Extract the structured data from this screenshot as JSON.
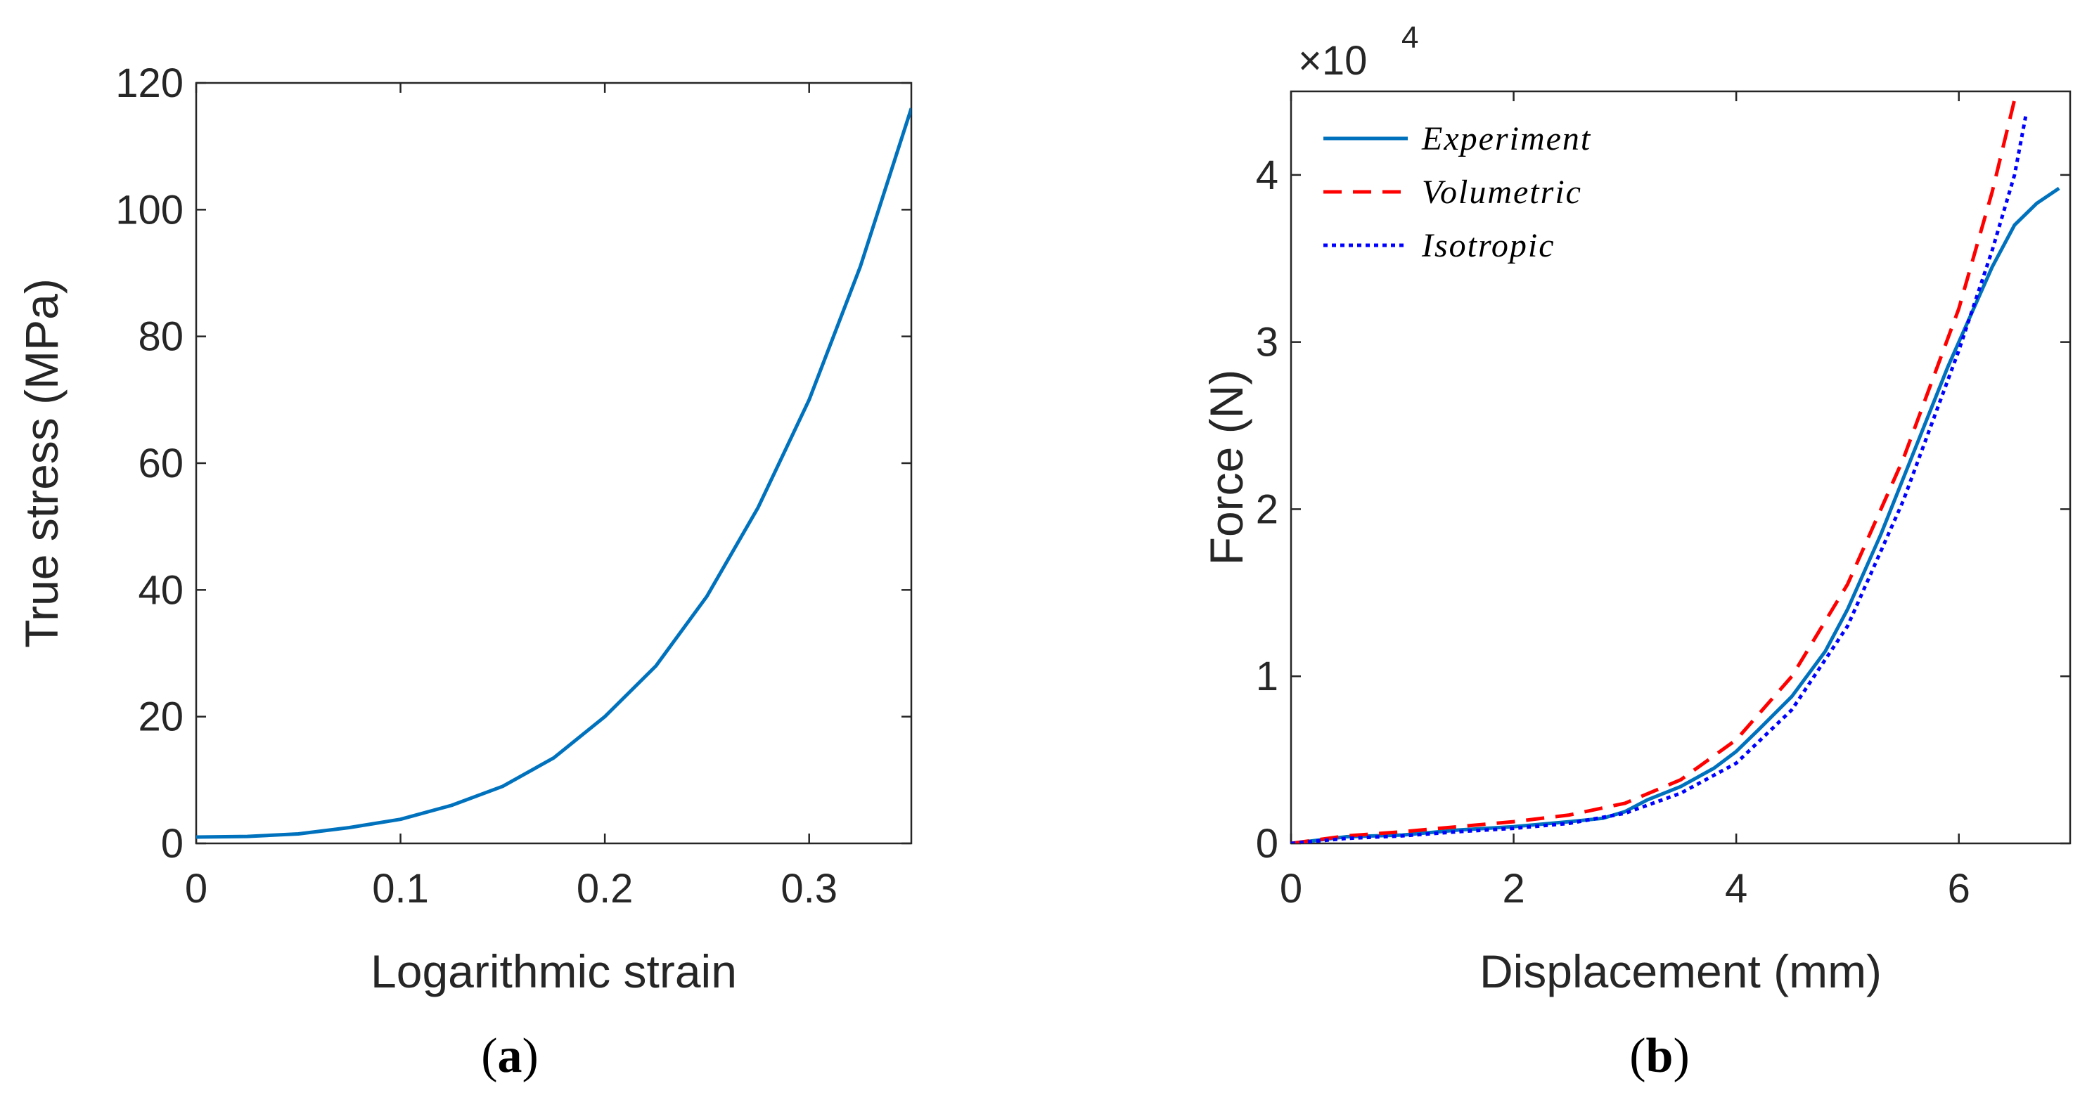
{
  "chart_data": [
    {
      "type": "line",
      "caption": "a",
      "xlabel": "Logarithmic strain",
      "ylabel": "True stress (MPa)",
      "xlim": [
        0,
        0.35
      ],
      "ylim": [
        0,
        120
      ],
      "xticks": [
        0,
        0.1,
        0.2,
        0.3
      ],
      "xtick_labels": [
        "0",
        "0.1",
        "0.2",
        "0.3"
      ],
      "yticks": [
        0,
        20,
        40,
        60,
        80,
        100,
        120
      ],
      "ytick_labels": [
        "0",
        "20",
        "40",
        "60",
        "80",
        "100",
        "120"
      ],
      "grid": false,
      "colors": {
        "series": "#0072BD",
        "axis": "#262626"
      },
      "series": [
        {
          "style": "solid",
          "x": [
            0,
            0.025,
            0.05,
            0.075,
            0.1,
            0.125,
            0.15,
            0.175,
            0.2,
            0.225,
            0.25,
            0.275,
            0.3,
            0.325,
            0.35
          ],
          "y": [
            1.0,
            1.1,
            1.5,
            2.5,
            3.8,
            6.0,
            9.0,
            13.5,
            20.0,
            28.0,
            39.0,
            53.0,
            70.0,
            91.0,
            116.0
          ]
        }
      ]
    },
    {
      "type": "line",
      "caption": "b",
      "xlabel": "Displacement (mm)",
      "ylabel": "Force (N)",
      "exponent_label": "×10",
      "exponent": "4",
      "xlim": [
        0,
        7
      ],
      "ylim": [
        0,
        45000
      ],
      "xticks": [
        0,
        2,
        4,
        6
      ],
      "xtick_labels": [
        "0",
        "2",
        "4",
        "6"
      ],
      "yticks": [
        0,
        10000,
        20000,
        30000,
        40000
      ],
      "ytick_labels": [
        "0",
        "1",
        "2",
        "3",
        "4"
      ],
      "grid": false,
      "legend_position": "top-left",
      "colors": {
        "Experiment": "#0072BD",
        "Volumetric": "#FF0000",
        "Isotropic": "#0000FF",
        "axis": "#262626"
      },
      "series": [
        {
          "name": "Experiment",
          "style": "solid",
          "x": [
            0,
            0.5,
            1.0,
            1.5,
            2.0,
            2.5,
            2.8,
            3.0,
            3.2,
            3.5,
            3.8,
            4.0,
            4.2,
            4.5,
            4.8,
            5.0,
            5.3,
            5.6,
            5.9,
            6.1,
            6.3,
            6.5,
            6.7,
            6.9
          ],
          "y": [
            0,
            400,
            500,
            800,
            1000,
            1300,
            1500,
            1900,
            2600,
            3400,
            4500,
            5500,
            6800,
            8800,
            11500,
            14000,
            18500,
            23500,
            28500,
            31500,
            34500,
            37000,
            38300,
            39200
          ]
        },
        {
          "name": "Volumetric",
          "style": "dashed",
          "x": [
            0,
            0.5,
            1.0,
            1.5,
            2.0,
            2.5,
            3.0,
            3.5,
            4.0,
            4.5,
            5.0,
            5.5,
            6.0,
            6.3,
            6.5
          ],
          "y": [
            0,
            450,
            700,
            1000,
            1300,
            1700,
            2400,
            3800,
            6200,
            10000,
            15500,
            23000,
            32000,
            39000,
            44500
          ]
        },
        {
          "name": "Isotropic",
          "style": "dotted",
          "x": [
            0,
            0.5,
            1.0,
            1.5,
            2.0,
            2.5,
            3.0,
            3.5,
            4.0,
            4.5,
            5.0,
            5.5,
            6.0,
            6.3,
            6.5,
            6.6
          ],
          "y": [
            0,
            300,
            450,
            700,
            900,
            1200,
            1800,
            3000,
            4800,
            8000,
            13000,
            20500,
            29500,
            35500,
            40000,
            43500
          ]
        }
      ]
    }
  ]
}
